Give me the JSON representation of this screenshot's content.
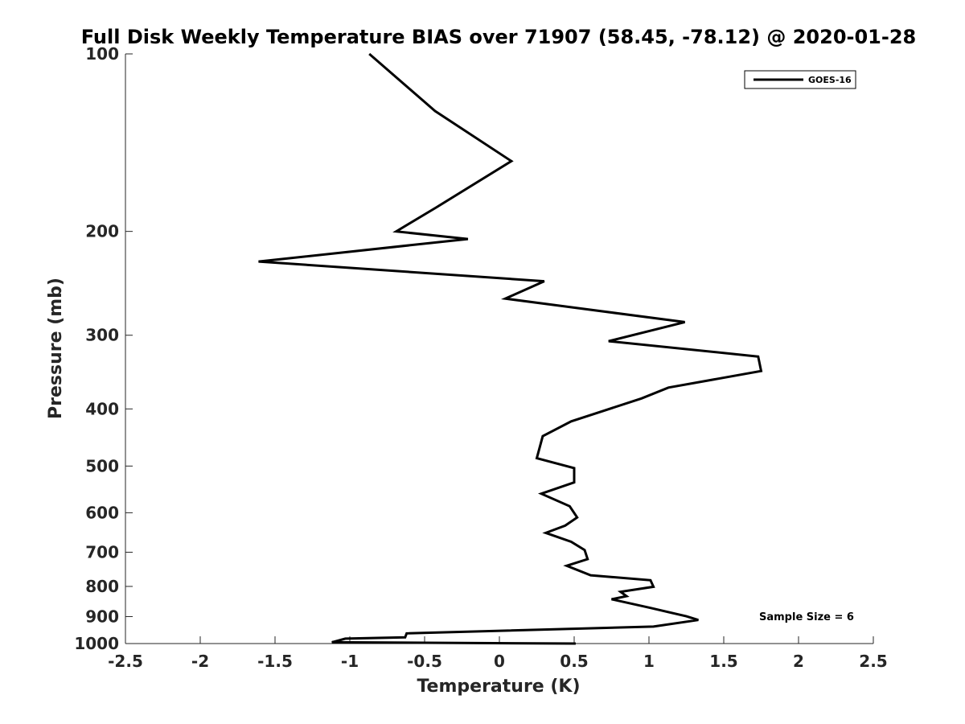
{
  "chart_data": {
    "type": "line",
    "title": "Full Disk Weekly Temperature BIAS over 71907 (58.45, -78.12) @ 2020-01-28",
    "xlabel": "Temperature (K)",
    "ylabel": "Pressure (mb)",
    "xlim": [
      -2.5,
      2.5
    ],
    "ylim": [
      100,
      1000
    ],
    "y_scale": "log",
    "y_reversed": true,
    "grid": false,
    "legend_position": "top-right",
    "x_ticks": [
      "-2.5",
      "-2",
      "-1.5",
      "-1",
      "-0.5",
      "0",
      "0.5",
      "1",
      "1.5",
      "2",
      "2.5"
    ],
    "x_tick_values": [
      -2.5,
      -2,
      -1.5,
      -1,
      -0.5,
      0,
      0.5,
      1,
      1.5,
      2,
      2.5
    ],
    "y_ticks": [
      "100",
      "200",
      "300",
      "400",
      "500",
      "600",
      "700",
      "800",
      "900",
      "1000"
    ],
    "y_tick_values": [
      100,
      200,
      300,
      400,
      500,
      600,
      700,
      800,
      900,
      1000
    ],
    "series": [
      {
        "name": "GOES-16",
        "color": "#000000",
        "points": [
          [
            -0.87,
            100
          ],
          [
            -0.43,
            125
          ],
          [
            0.08,
            152
          ],
          [
            -0.42,
            182
          ],
          [
            -0.69,
            200
          ],
          [
            -0.21,
            206
          ],
          [
            -1.61,
            225
          ],
          [
            0.3,
            243
          ],
          [
            0.04,
            260
          ],
          [
            1.24,
            285
          ],
          [
            0.73,
            307
          ],
          [
            1.73,
            326
          ],
          [
            1.75,
            345
          ],
          [
            1.13,
            368
          ],
          [
            0.95,
            384
          ],
          [
            0.48,
            420
          ],
          [
            0.29,
            445
          ],
          [
            0.25,
            485
          ],
          [
            0.5,
            504
          ],
          [
            0.5,
            533
          ],
          [
            0.28,
            557
          ],
          [
            0.47,
            585
          ],
          [
            0.52,
            611
          ],
          [
            0.44,
            631
          ],
          [
            0.31,
            649
          ],
          [
            0.48,
            672
          ],
          [
            0.57,
            694
          ],
          [
            0.59,
            719
          ],
          [
            0.45,
            738
          ],
          [
            0.61,
            766
          ],
          [
            1.01,
            781
          ],
          [
            1.03,
            801
          ],
          [
            0.81,
            817
          ],
          [
            0.85,
            831
          ],
          [
            0.75,
            841
          ],
          [
            1.01,
            870
          ],
          [
            1.25,
            899
          ],
          [
            1.33,
            912
          ],
          [
            1.03,
            936
          ],
          [
            -0.62,
            961
          ],
          [
            -0.63,
            976
          ],
          [
            -1.03,
            981
          ],
          [
            -1.12,
            995
          ],
          [
            0.51,
            1000
          ]
        ]
      }
    ]
  },
  "annotation": {
    "sample_size": "Sample Size = 6"
  }
}
